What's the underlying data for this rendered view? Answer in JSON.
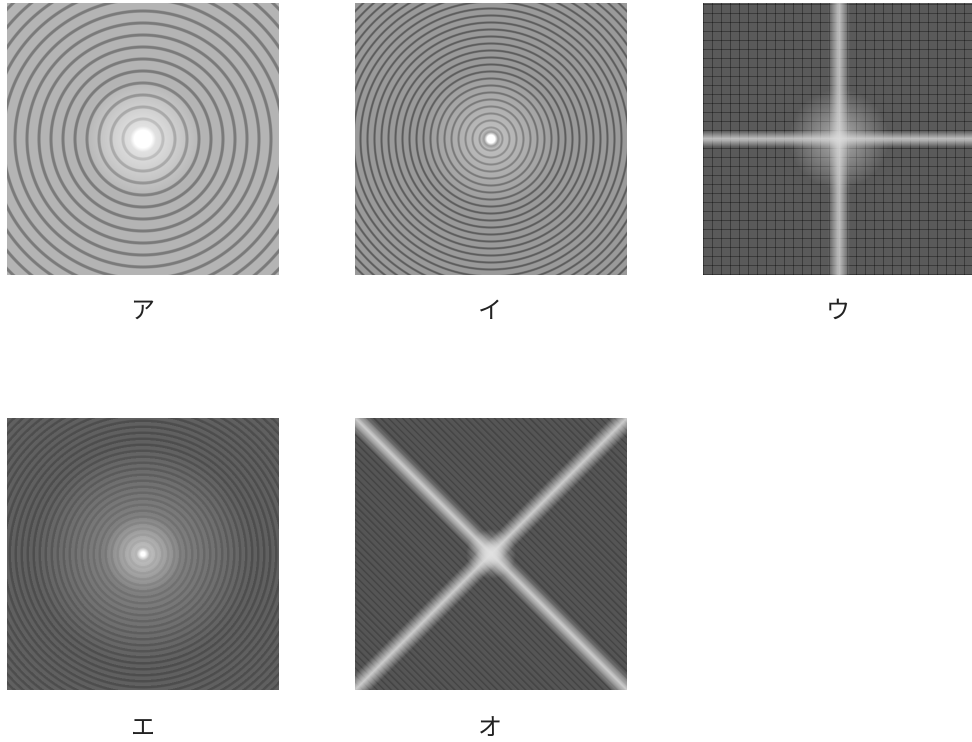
{
  "figures": [
    {
      "label": "ア"
    },
    {
      "label": "イ"
    },
    {
      "label": "ウ"
    },
    {
      "label": "エ"
    },
    {
      "label": "オ"
    }
  ]
}
